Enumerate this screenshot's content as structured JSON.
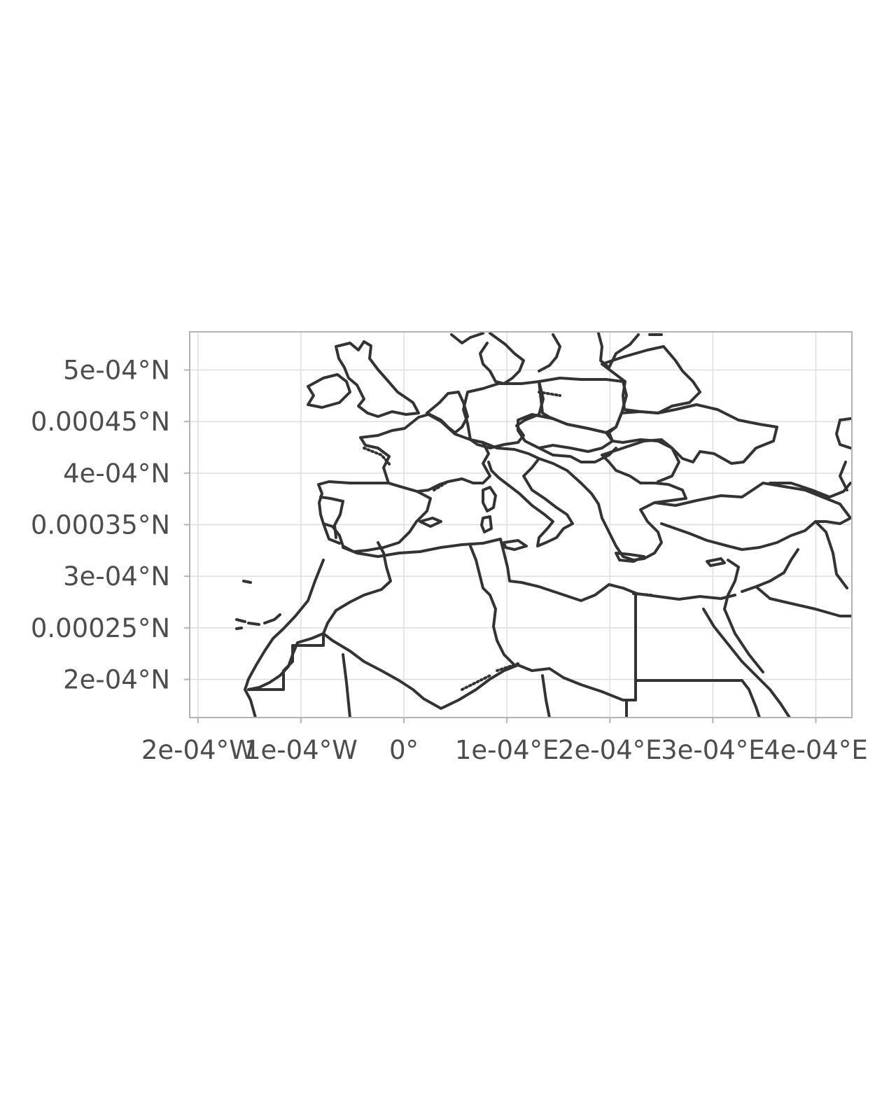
{
  "chart_data": {
    "type": "map",
    "region": "Mediterranean basin, Europe and North Africa",
    "grid": true,
    "x_axis": {
      "tick_labels": [
        "2e-04°W",
        "1e-04°W",
        "0°",
        "1e-04°E",
        "2e-04°E",
        "3e-04°E",
        "4e-04°E"
      ],
      "tick_values": [
        -0.0002,
        -0.0001,
        0,
        0.0001,
        0.0002,
        0.0003,
        0.0004
      ],
      "range": [
        -0.000208,
        0.000435
      ]
    },
    "y_axis": {
      "tick_labels": [
        "5e-04°N",
        "0.00045°N",
        "4e-04°N",
        "0.00035°N",
        "3e-04°N",
        "0.00025°N",
        "2e-04°N"
      ],
      "tick_values": [
        0.0005,
        0.00045,
        0.0004,
        0.00035,
        0.0003,
        0.00025,
        0.0002
      ],
      "range": [
        0.000163,
        0.000537
      ]
    },
    "colors": {
      "borders": "#333333",
      "gridlines": "#dedede",
      "panel_border": "#b3b3b3",
      "tick_text": "#4d4d4d"
    }
  }
}
